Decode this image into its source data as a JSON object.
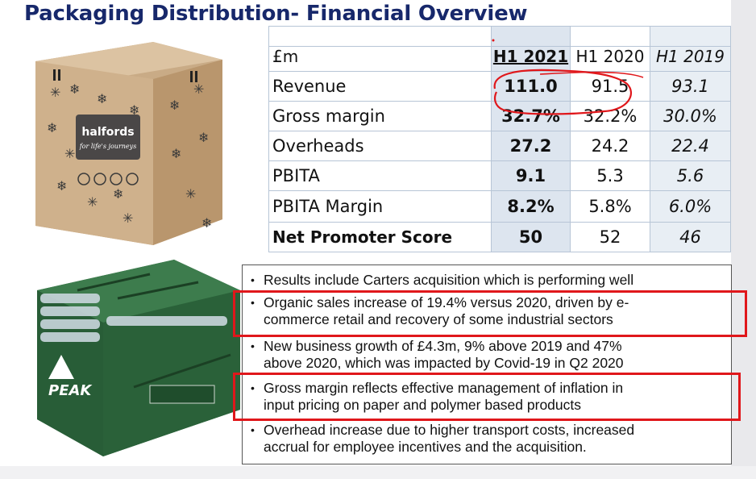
{
  "slide": {
    "title": "Packaging Distribution- Financial Overview"
  },
  "box_image": {
    "brand": "halfords",
    "tagline": "for life's journeys"
  },
  "bag_image": {
    "brand": "PEAK"
  },
  "table": {
    "headers": [
      "£m",
      "H1 2021",
      "H1 2020",
      "H1 2019"
    ],
    "rows": [
      {
        "label": "Revenue",
        "values": [
          "111.0",
          "91.5",
          "93.1"
        ]
      },
      {
        "label": "Gross margin",
        "values": [
          "32.7%",
          "32.2%",
          "30.0%"
        ]
      },
      {
        "label": "Overheads",
        "values": [
          "27.2",
          "24.2",
          "22.4"
        ]
      },
      {
        "label": "PBITA",
        "values": [
          "9.1",
          "5.3",
          "5.6"
        ]
      },
      {
        "label": "PBITA Margin",
        "values": [
          "8.2%",
          "5.8%",
          "6.0%"
        ]
      },
      {
        "label": "Net Promoter Score",
        "values": [
          "50",
          "52",
          "46"
        ]
      }
    ]
  },
  "bullets": [
    {
      "lines": [
        "Results include Carters acquisition which is performing well"
      ]
    },
    {
      "lines": [
        "Organic sales increase of 19.4% versus 2020, driven by e-",
        "commerce retail and recovery of some industrial sectors"
      ]
    },
    {
      "lines": [
        "New business growth of £4.3m, 9% above 2019 and 47%",
        "above 2020, which was impacted by Covid-19 in Q2 2020"
      ]
    },
    {
      "lines": [
        "Gross margin reflects effective management of inflation in",
        "input pricing on paper and polymer based products"
      ]
    },
    {
      "lines": [
        "Overhead increase due to higher transport costs, increased",
        "accrual for employee incentives and the acquisition."
      ]
    }
  ],
  "colors": {
    "title": "#17286b",
    "highlight": "#e0171b",
    "h1_2021_column": "#dde5ef",
    "h1_2019_column": "#e8eef4"
  }
}
